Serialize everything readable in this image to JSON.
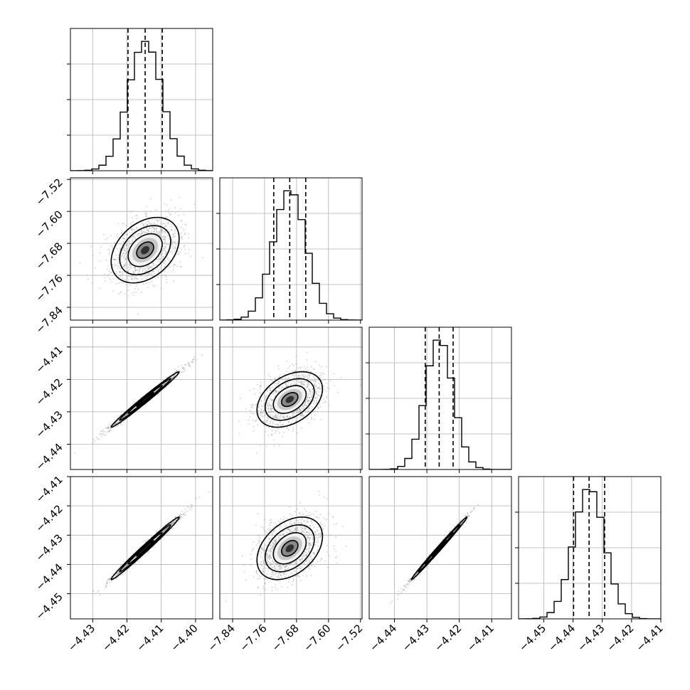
{
  "chart_data": {
    "type": "corner",
    "parameters": [
      {
        "index": 0,
        "range": [
          -4.4365,
          -4.395
        ],
        "ticks": [
          "-4.43",
          "-4.42",
          "-4.41",
          "-4.40"
        ],
        "tick_values": [
          -4.43,
          -4.42,
          -4.41,
          -4.4
        ],
        "mean": -4.4147,
        "std": 0.00496,
        "quantiles": [
          -4.4197,
          -4.4147,
          -4.4097
        ]
      },
      {
        "index": 1,
        "range": [
          -7.872,
          -7.516
        ],
        "ticks": [
          "-7.84",
          "-7.76",
          "-7.68",
          "-7.60",
          "-7.52"
        ],
        "tick_values": [
          -7.84,
          -7.76,
          -7.68,
          -7.6,
          -7.52
        ],
        "mean": -7.697,
        "std": 0.041,
        "quantiles": [
          -7.737,
          -7.697,
          -7.657
        ]
      },
      {
        "index": 2,
        "range": [
          -4.4478,
          -4.4039
        ],
        "ticks": [
          "-4.44",
          "-4.43",
          "-4.42",
          "-4.41"
        ],
        "tick_values": [
          -4.44,
          -4.43,
          -4.42,
          -4.41
        ],
        "mean": -4.4262,
        "std": 0.00428,
        "quantiles": [
          -4.4305,
          -4.4262,
          -4.4219
        ]
      },
      {
        "index": 3,
        "range": [
          -4.4586,
          -4.41
        ],
        "ticks": [
          "-4.45",
          "-4.44",
          "-4.43",
          "-4.42",
          "-4.41"
        ],
        "tick_values": [
          -4.45,
          -4.44,
          -4.43,
          -4.42,
          -4.41
        ],
        "mean": -4.4345,
        "std": 0.00534,
        "quantiles": [
          -4.4398,
          -4.4345,
          -4.4292
        ]
      }
    ],
    "correlations": [
      [
        1.0,
        0.35,
        0.99,
        0.99
      ],
      [
        0.35,
        1.0,
        0.38,
        0.38
      ],
      [
        0.99,
        0.38,
        1.0,
        0.995
      ],
      [
        0.99,
        0.38,
        0.995,
        1.0
      ]
    ],
    "histogram_bins": 20,
    "quantile_levels": [
      0.16,
      0.5,
      0.84
    ],
    "contour_levels": [
      0.5,
      1.0,
      1.5,
      2.0
    ],
    "grid": true,
    "colors": {
      "ink": "#000000",
      "grid": "#b0b0b0",
      "points": "#9a9a9a"
    }
  }
}
